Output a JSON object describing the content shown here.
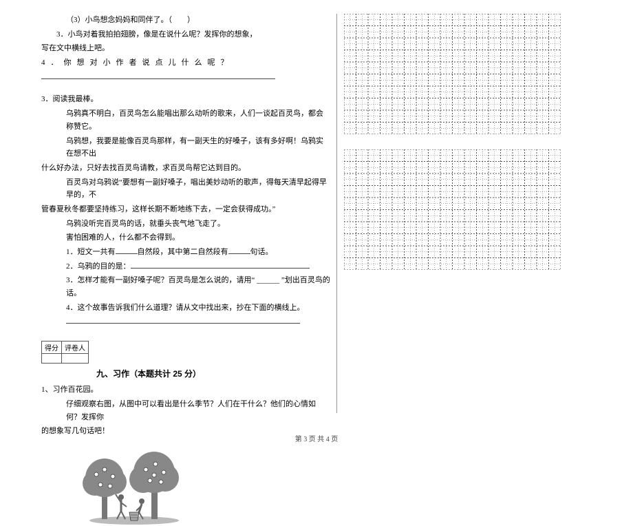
{
  "left": {
    "lines": [
      {
        "cls": "para indent2",
        "text": "（3）小鸟想念妈妈和同伴了。（　　）"
      },
      {
        "cls": "para indent1",
        "text": "3．小鸟对着我拍拍翅膀，像是在说什么呢？发挥你的想象，"
      },
      {
        "cls": "para",
        "text": "写在文中横线上吧。"
      },
      {
        "cls": "para spread",
        "text": "4．你想对小作者说点儿什么呢？"
      }
    ],
    "longline_w": 340,
    "reading": {
      "head": "3．阅读我最棒。",
      "p1": "乌鸦真不明白，百灵鸟怎么能唱出那么动听的歌来，人们一谈起百灵鸟，都会称赞它。",
      "p2a": "乌鸦想，我要是能像百灵鸟那样，有一副天生的好嗓子，该有多好啊！乌鸦实在想不出",
      "p2b": "什么好办法，只好去找百灵鸟请教，求百灵鸟帮它达到目的。",
      "p3a": "百灵鸟对乌鸦说“要想有一副好嗓子，唱出美妙动听的歌声，得每天清早起得早早的，不",
      "p3b": "管春夏秋冬都要坚持练习，这样长期不断地练下去，一定会获得成功。”",
      "p4": "乌鸦没听完百灵鸟的话，就垂头丧气地飞走了。",
      "p5": "害怕困难的人，什么都不会得到。",
      "q1a": "1．短文一共有",
      "q1b": "自然段，其中第二自然段有",
      "q1c": "句话。",
      "q2": "2．乌鸦的目的是：",
      "q3": "3．怎样才能有一副好嗓子呢？百灵鸟是怎么说的，请用“ ______ ”划出百灵鸟的话。",
      "q4": "4．这个故事告诉我们什么道理？请从文中找出来，抄在下面的横线上。"
    },
    "score": {
      "c1": "得分",
      "c2": "评卷人"
    },
    "section9": "九、习作（本题共计 25 分）",
    "task": {
      "t1": "1、习作百花园。",
      "t2": "仔细观察右图，从图中可以看出是什么季节？人们在干什么？他们的心情如何？发挥你",
      "t3": "的想象写几句话吧！"
    }
  },
  "grid": {
    "rows": 10,
    "cols": 18,
    "cell": 17.5,
    "stroke": "#555",
    "dash": "2,2",
    "dash_mid": "1,2"
  },
  "illus": {
    "w": 150,
    "h": 120,
    "fill": "#777",
    "stroke": "#333"
  },
  "footer": "第 3 页  共 4 页"
}
